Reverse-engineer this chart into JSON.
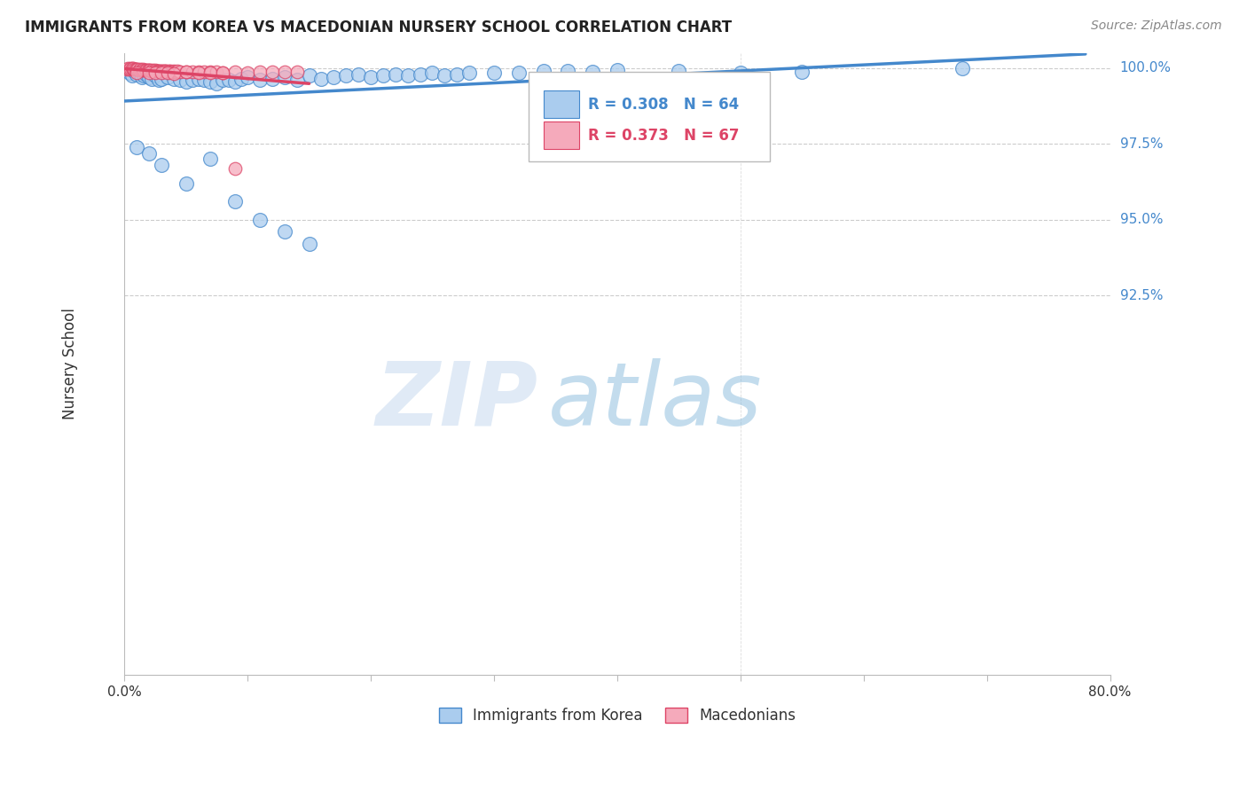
{
  "title": "IMMIGRANTS FROM KOREA VS MACEDONIAN NURSERY SCHOOL CORRELATION CHART",
  "source": "Source: ZipAtlas.com",
  "ylabel": "Nursery School",
  "xlim": [
    0.0,
    0.8
  ],
  "ylim": [
    0.8,
    1.005
  ],
  "blue_color": "#aaccee",
  "pink_color": "#f5aabb",
  "trendline_blue": "#4488cc",
  "trendline_pink": "#dd4466",
  "legend_R_blue": "R = 0.308",
  "legend_N_blue": "N = 64",
  "legend_R_pink": "R = 0.373",
  "legend_N_pink": "N = 67",
  "legend_label_blue": "Immigrants from Korea",
  "legend_label_pink": "Macedonians",
  "watermark_zip": "ZIP",
  "watermark_atlas": "atlas",
  "grid_color": "#cccccc",
  "bg_color": "#ffffff",
  "blue_scatter_x": [
    0.004,
    0.006,
    0.008,
    0.01,
    0.012,
    0.014,
    0.016,
    0.018,
    0.02,
    0.022,
    0.025,
    0.028,
    0.03,
    0.035,
    0.04,
    0.045,
    0.05,
    0.055,
    0.06,
    0.065,
    0.07,
    0.075,
    0.08,
    0.085,
    0.09,
    0.095,
    0.1,
    0.11,
    0.12,
    0.13,
    0.14,
    0.15,
    0.16,
    0.17,
    0.18,
    0.19,
    0.2,
    0.21,
    0.22,
    0.23,
    0.24,
    0.25,
    0.26,
    0.27,
    0.28,
    0.3,
    0.32,
    0.34,
    0.36,
    0.38,
    0.4,
    0.45,
    0.5,
    0.55,
    0.68,
    0.01,
    0.02,
    0.03,
    0.05,
    0.07,
    0.09,
    0.11,
    0.13,
    0.15
  ],
  "blue_scatter_y": [
    0.9985,
    0.9975,
    0.999,
    0.998,
    0.9985,
    0.997,
    0.9975,
    0.998,
    0.997,
    0.9965,
    0.9975,
    0.996,
    0.9965,
    0.997,
    0.9965,
    0.996,
    0.9955,
    0.996,
    0.9965,
    0.996,
    0.9955,
    0.995,
    0.996,
    0.996,
    0.9955,
    0.9965,
    0.997,
    0.996,
    0.9965,
    0.997,
    0.996,
    0.9975,
    0.9965,
    0.997,
    0.9975,
    0.998,
    0.997,
    0.9975,
    0.998,
    0.9975,
    0.998,
    0.9985,
    0.9975,
    0.998,
    0.9985,
    0.9985,
    0.9985,
    0.999,
    0.999,
    0.9988,
    0.9992,
    0.999,
    0.9985,
    0.9988,
    1.0,
    0.974,
    0.972,
    0.968,
    0.962,
    0.97,
    0.956,
    0.95,
    0.946,
    0.942
  ],
  "pink_scatter_x": [
    0.002,
    0.003,
    0.004,
    0.005,
    0.006,
    0.007,
    0.008,
    0.009,
    0.01,
    0.011,
    0.012,
    0.013,
    0.014,
    0.015,
    0.016,
    0.017,
    0.018,
    0.019,
    0.02,
    0.021,
    0.022,
    0.023,
    0.024,
    0.025,
    0.026,
    0.027,
    0.028,
    0.029,
    0.03,
    0.031,
    0.032,
    0.033,
    0.034,
    0.035,
    0.036,
    0.037,
    0.038,
    0.039,
    0.04,
    0.041,
    0.042,
    0.043,
    0.045,
    0.05,
    0.055,
    0.06,
    0.065,
    0.07,
    0.075,
    0.08,
    0.09,
    0.1,
    0.11,
    0.12,
    0.13,
    0.14,
    0.01,
    0.02,
    0.025,
    0.03,
    0.035,
    0.04,
    0.05,
    0.06,
    0.07,
    0.08,
    0.09
  ],
  "pink_scatter_y": [
    0.9995,
    0.9998,
    0.9997,
    1.0,
    0.9999,
    0.9998,
    0.9996,
    0.9997,
    0.9995,
    0.9996,
    0.9994,
    0.9995,
    0.9993,
    0.9995,
    0.9994,
    0.9993,
    0.9992,
    0.9993,
    0.9992,
    0.9993,
    0.9991,
    0.9992,
    0.9991,
    0.9992,
    0.999,
    0.9991,
    0.999,
    0.9991,
    0.999,
    0.9989,
    0.9991,
    0.999,
    0.9989,
    0.9988,
    0.999,
    0.9989,
    0.9988,
    0.9987,
    0.9989,
    0.9988,
    0.9987,
    0.9989,
    0.9988,
    0.9987,
    0.9986,
    0.9988,
    0.9986,
    0.9987,
    0.9986,
    0.9985,
    0.9986,
    0.9985,
    0.9987,
    0.9986,
    0.9987,
    0.9986,
    0.9985,
    0.9984,
    0.9985,
    0.9984,
    0.9984,
    0.9983,
    0.9986,
    0.9984,
    0.9985,
    0.9984,
    0.967
  ]
}
